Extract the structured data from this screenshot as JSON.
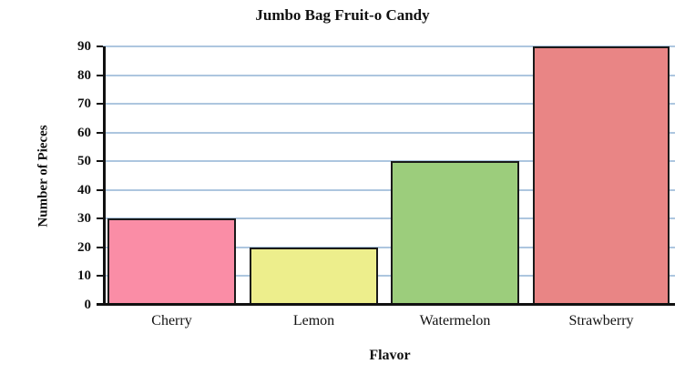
{
  "chart_data": {
    "type": "bar",
    "title": "Jumbo Bag Fruit-o Candy",
    "xlabel": "Flavor",
    "ylabel": "Number of Pieces",
    "categories": [
      "Cherry",
      "Lemon",
      "Watermelon",
      "Strawberry"
    ],
    "values": [
      30,
      20,
      50,
      90
    ],
    "bar_colors": [
      "#fa8da6",
      "#edee8c",
      "#9ccd7c",
      "#e98585"
    ],
    "ylim": [
      0,
      90
    ],
    "ytick_step": 10,
    "ytick_labels": [
      "0",
      "10",
      "20",
      "30",
      "40",
      "50",
      "60",
      "70",
      "80",
      "90"
    ],
    "grid": true,
    "gridline_color": "#adc6df",
    "axis_color": "#111111",
    "legend_position": "none",
    "background_color": "#ffffff"
  }
}
